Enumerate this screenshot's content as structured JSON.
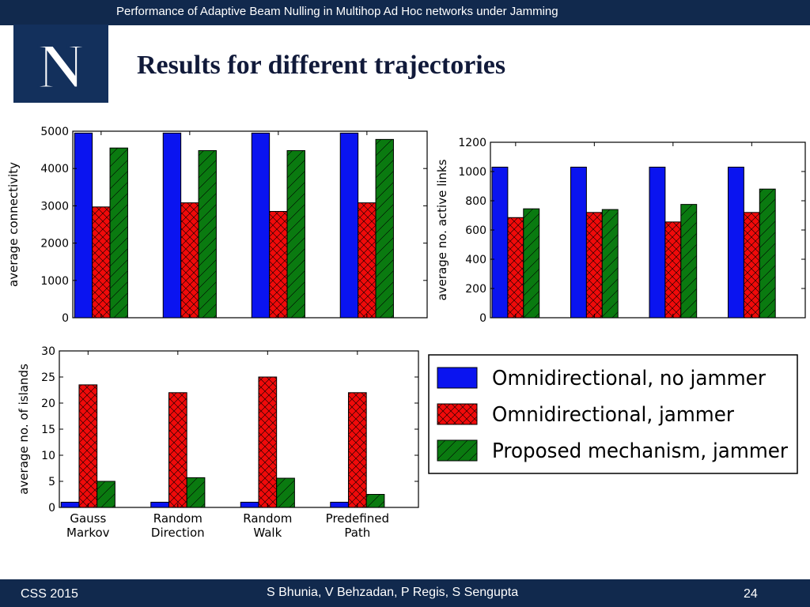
{
  "header": {
    "title": "Performance of Adaptive Beam Nulling in Multihop Ad Hoc networks under Jamming"
  },
  "logo": {
    "letter": "N"
  },
  "slide": {
    "title": "Results for different trajectories"
  },
  "footer": {
    "left": "CSS 2015",
    "center": "S Bhunia, V Behzadan, P Regis, S Sengupta",
    "page": "24"
  },
  "colors": {
    "bar_blue": "#0a14f0",
    "bar_red": "#f00a0a",
    "bar_green": "#0a7a10",
    "bar_navy": "#11294d"
  },
  "legend": {
    "items": [
      {
        "label": "Omnidirectional, no jammer",
        "color": "#0a14f0",
        "hatch": "none"
      },
      {
        "label": "Omnidirectional, jammer",
        "color": "#f00a0a",
        "hatch": "cross"
      },
      {
        "label": "Proposed mechanism, jammer",
        "color": "#0a7a10",
        "hatch": "diagonal"
      }
    ]
  },
  "chart_data": [
    {
      "type": "bar",
      "ylabel": "average connectivity",
      "ylim": [
        0,
        5000
      ],
      "yticks": [
        "0",
        "1000",
        "2000",
        "3000",
        "4000",
        "5000"
      ],
      "grid": false,
      "series": [
        {
          "name": "Omnidirectional, no jammer",
          "values": [
            4950,
            4950,
            4950,
            4950
          ]
        },
        {
          "name": "Omnidirectional, jammer",
          "values": [
            2970,
            3080,
            2850,
            3080
          ]
        },
        {
          "name": "Proposed mechanism, jammer",
          "values": [
            4550,
            4480,
            4480,
            4780
          ]
        }
      ]
    },
    {
      "type": "bar",
      "ylabel": "average no. active links",
      "ylim": [
        0,
        1200
      ],
      "yticks": [
        "0",
        "200",
        "400",
        "600",
        "800",
        "1000",
        "1200"
      ],
      "grid": false,
      "series": [
        {
          "name": "Omnidirectional, no jammer",
          "values": [
            1030,
            1030,
            1030,
            1030
          ]
        },
        {
          "name": "Omnidirectional, jammer",
          "values": [
            685,
            720,
            655,
            720
          ]
        },
        {
          "name": "Proposed mechanism, jammer",
          "values": [
            745,
            740,
            775,
            880
          ]
        }
      ]
    },
    {
      "type": "bar",
      "ylabel": "average no. of islands",
      "categories": [
        "Gauss Markov",
        "Random Direction",
        "Random Walk",
        "Predefined Path"
      ],
      "ylim": [
        0,
        30
      ],
      "yticks": [
        "0",
        "5",
        "10",
        "15",
        "20",
        "25",
        "30"
      ],
      "grid": false,
      "series": [
        {
          "name": "Omnidirectional, no jammer",
          "values": [
            1,
            1,
            1,
            1
          ]
        },
        {
          "name": "Omnidirectional, jammer",
          "values": [
            23.5,
            22,
            25,
            22
          ]
        },
        {
          "name": "Proposed mechanism, jammer",
          "values": [
            5,
            5.7,
            5.6,
            2.5
          ]
        }
      ]
    }
  ]
}
